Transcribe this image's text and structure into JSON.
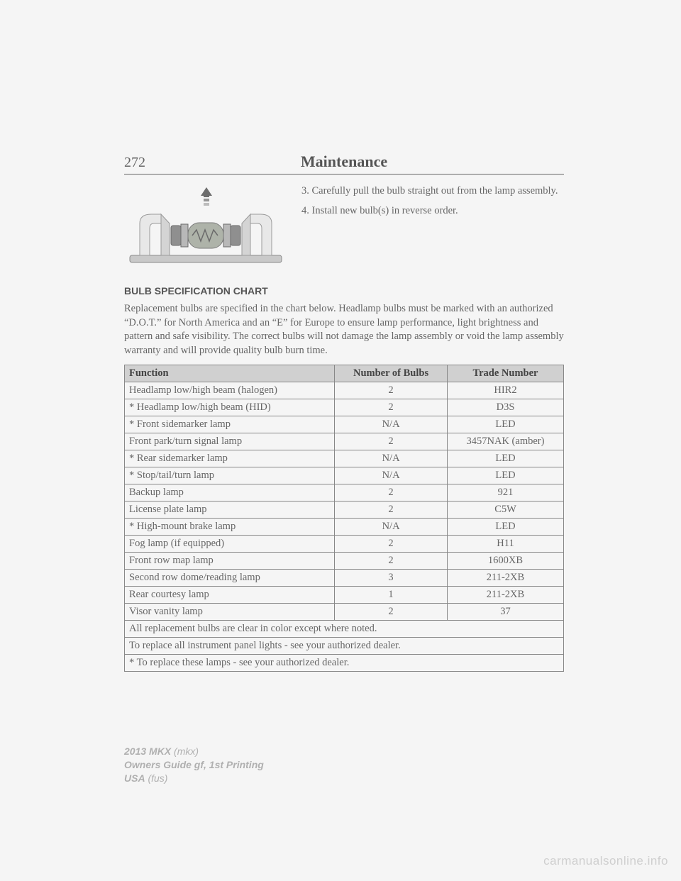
{
  "page_number": "272",
  "chapter": "Maintenance",
  "steps": {
    "step3": "3. Carefully pull the bulb straight out from the lamp assembly.",
    "step4": "4. Install new bulb(s) in reverse order."
  },
  "section_heading": "BULB SPECIFICATION CHART",
  "intro_text": "Replacement bulbs are specified in the chart below. Headlamp bulbs must be marked with an authorized “D.O.T.” for North America and an “E” for Europe to ensure lamp performance, light brightness and pattern and safe visibility. The correct bulbs will not damage the lamp assembly or void the lamp assembly warranty and will provide quality bulb burn time.",
  "table": {
    "columns": [
      "Function",
      "Number of Bulbs",
      "Trade Number"
    ],
    "rows": [
      [
        "Headlamp low/high beam (halogen)",
        "2",
        "HIR2"
      ],
      [
        "* Headlamp low/high beam (HID)",
        "2",
        "D3S"
      ],
      [
        "* Front sidemarker lamp",
        "N/A",
        "LED"
      ],
      [
        "Front park/turn signal lamp",
        "2",
        "3457NAK (amber)"
      ],
      [
        "* Rear sidemarker lamp",
        "N/A",
        "LED"
      ],
      [
        "* Stop/tail/turn lamp",
        "N/A",
        "LED"
      ],
      [
        "Backup lamp",
        "2",
        "921"
      ],
      [
        "License plate lamp",
        "2",
        "C5W"
      ],
      [
        "* High-mount brake lamp",
        "N/A",
        "LED"
      ],
      [
        "Fog lamp (if equipped)",
        "2",
        "H11"
      ],
      [
        "Front row map lamp",
        "2",
        "1600XB"
      ],
      [
        "Second row dome/reading lamp",
        "3",
        "211-2XB"
      ],
      [
        "Rear courtesy lamp",
        "1",
        "211-2XB"
      ],
      [
        "Visor vanity lamp",
        "2",
        "37"
      ]
    ],
    "notes": [
      "All replacement bulbs are clear in color except where noted.",
      "To replace all instrument panel lights - see your authorized dealer.",
      "* To replace these lamps - see your authorized dealer."
    ]
  },
  "footer": {
    "line1a": "2013 MKX",
    "line1b": " (mkx)",
    "line2": "Owners Guide gf, 1st Printing",
    "line3a": "USA",
    "line3b": " (fus)"
  },
  "watermark": "carmanualsonline.info",
  "diagram": {
    "base_color": "#c9c9c9",
    "clip_color": "#e8e8e8",
    "bulb_body": "#8f8f8f",
    "bulb_band": "#b8b8b8",
    "bulb_glass": "#aeb3a9",
    "arrow_color": "#6d6d6d",
    "outline": "#6a6a6a"
  }
}
